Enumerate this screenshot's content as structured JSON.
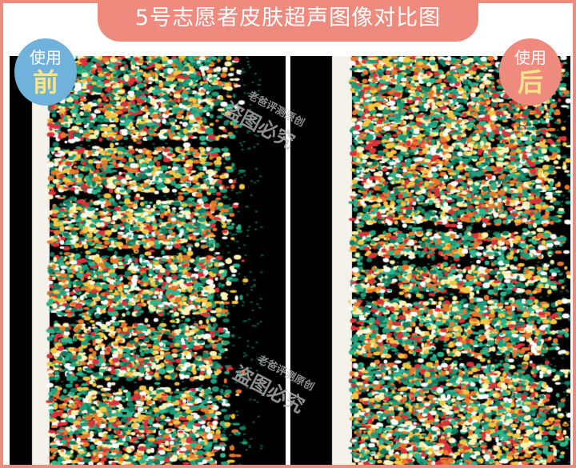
{
  "title": "5号志愿者皮肤超声图像对比图",
  "badges": {
    "before": {
      "top": "使用",
      "bottom": "前",
      "color": "#6fb2dc"
    },
    "after": {
      "top": "使用",
      "bottom": "后",
      "color": "#ef8a7f"
    }
  },
  "watermark": {
    "line1": "老爸评测原创",
    "line2": "盗图必究"
  },
  "colors": {
    "frame": "#ef8a7f",
    "badge_text_accent": "#fbe38a"
  }
}
